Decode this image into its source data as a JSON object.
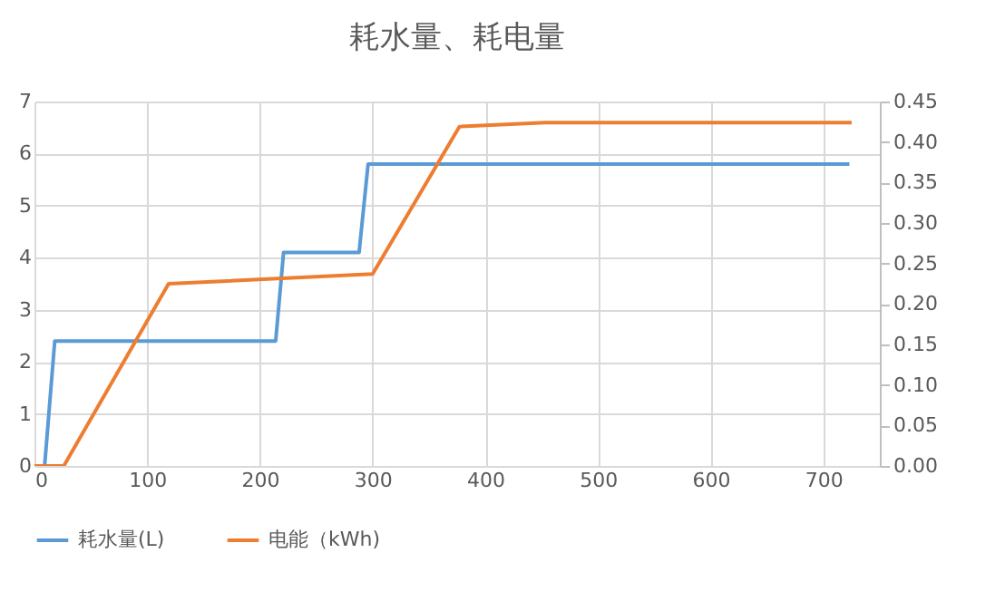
{
  "chart_data": {
    "type": "line",
    "title": "耗水量、耗电量",
    "xlim": [
      0,
      750
    ],
    "xticks": [
      0,
      100,
      200,
      300,
      400,
      500,
      600,
      700
    ],
    "ylim": [
      0,
      7
    ],
    "yticks": [
      0,
      1,
      2,
      3,
      4,
      5,
      6,
      7
    ],
    "y2lim": [
      0,
      0.45
    ],
    "y2ticks": [
      {
        "value": 0,
        "label": "0.00"
      },
      {
        "value": 0.05,
        "label": "0.05"
      },
      {
        "value": 0.1,
        "label": "0.10"
      },
      {
        "value": 0.15,
        "label": "0.15"
      },
      {
        "value": 0.2,
        "label": "0.20"
      },
      {
        "value": 0.25,
        "label": "0.25"
      },
      {
        "value": 0.3,
        "label": "0.30"
      },
      {
        "value": 0.35,
        "label": "0.35"
      },
      {
        "value": 0.4,
        "label": "0.40"
      },
      {
        "value": 0.45,
        "label": "0.45"
      }
    ],
    "grid": true,
    "legend": "bottom",
    "series": [
      {
        "name": "耗水量(L)",
        "color": "#5b9bd5",
        "x": [
          0,
          9,
          18,
          214,
          221,
          288,
          296,
          723
        ],
        "values": [
          0,
          0,
          2.4,
          2.4,
          4.1,
          4.1,
          5.8,
          5.8
        ]
      },
      {
        "name": "电能（kWh)",
        "color": "#ed7d31",
        "axis": "y2",
        "x": [
          0,
          26,
          119,
          300,
          377,
          453,
          725
        ],
        "values": [
          0,
          0,
          0.225,
          0.237,
          0.419,
          0.424,
          0.424
        ]
      }
    ]
  }
}
